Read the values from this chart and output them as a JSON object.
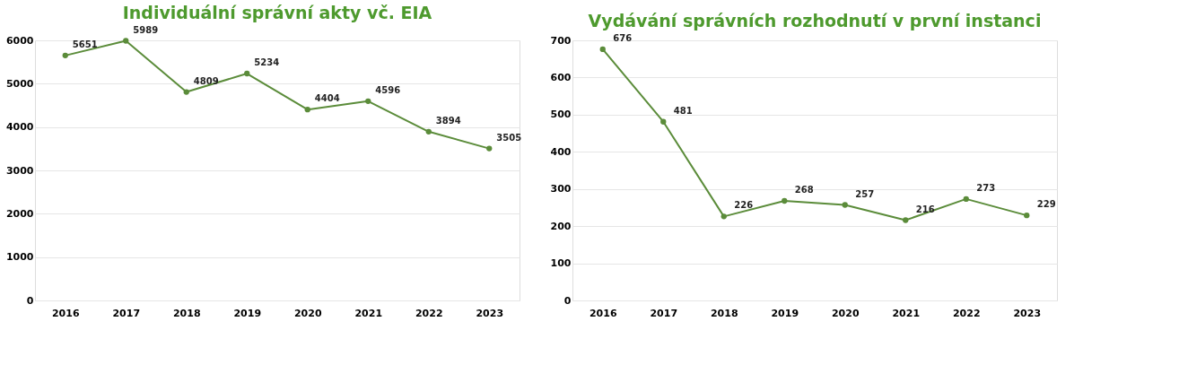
{
  "chart_data": [
    {
      "type": "line",
      "title": "Individuální správní akty vč. EIA",
      "categories": [
        "2016",
        "2017",
        "2018",
        "2019",
        "2020",
        "2021",
        "2022",
        "2023"
      ],
      "series": [
        {
          "color": "#5b8c3a",
          "values": [
            5651,
            5989,
            4809,
            5234,
            4404,
            4596,
            3894,
            3505
          ]
        }
      ],
      "ylim": [
        0,
        6000
      ],
      "yticks": [
        0,
        1000,
        2000,
        3000,
        4000,
        5000,
        6000
      ],
      "grid": "y",
      "marker": "circle",
      "data_labels": true
    },
    {
      "type": "line",
      "title": "Vydávání správních rozhodnutí v první instanci",
      "categories": [
        "2016",
        "2017",
        "2018",
        "2019",
        "2020",
        "2021",
        "2022",
        "2023"
      ],
      "series": [
        {
          "color": "#5b8c3a",
          "values": [
            676,
            481,
            226,
            268,
            257,
            216,
            273,
            229
          ]
        }
      ],
      "ylim": [
        0,
        700
      ],
      "yticks": [
        0,
        100,
        200,
        300,
        400,
        500,
        600,
        700
      ],
      "grid": "y",
      "marker": "circle",
      "data_labels": true
    }
  ]
}
